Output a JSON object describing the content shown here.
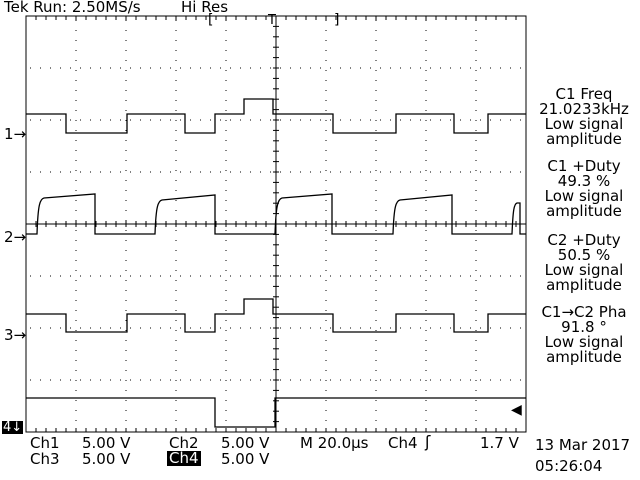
{
  "header": {
    "status": "Tek Run: 2.50MS/s",
    "mode": "Hi Res",
    "trigger_marker": "T"
  },
  "channel_markers": [
    "1",
    "2",
    "3",
    "4"
  ],
  "measurements": [
    {
      "lines": [
        "C1 Freq",
        "21.0233kHz",
        "Low signal",
        "amplitude"
      ]
    },
    {
      "lines": [
        "C1 +Duty",
        "49.3 %",
        "Low signal",
        "amplitude"
      ]
    },
    {
      "lines": [
        "C2 +Duty",
        "50.5 %",
        "Low signal",
        "amplitude"
      ]
    },
    {
      "lines": [
        "C1→C2 Pha",
        "91.8 °",
        "Low signal",
        "amplitude"
      ]
    }
  ],
  "footer": {
    "ch1_label": "Ch1",
    "ch1_scale": "5.00 V",
    "ch2_label": "Ch2",
    "ch2_scale": "5.00 V",
    "ch3_label": "Ch3",
    "ch3_scale": "5.00 V",
    "ch4_label": "Ch4",
    "ch4_scale": "5.00 V",
    "timebase": "M 20.0µs",
    "trigger_source": "Ch4",
    "trigger_slope": "ʃ",
    "trigger_level": "1.7 V",
    "date": "13 Mar 2017",
    "time": "05:26:04"
  },
  "colors": {
    "background": "#ffffff",
    "trace": "#000000",
    "graticule": "#000000"
  }
}
